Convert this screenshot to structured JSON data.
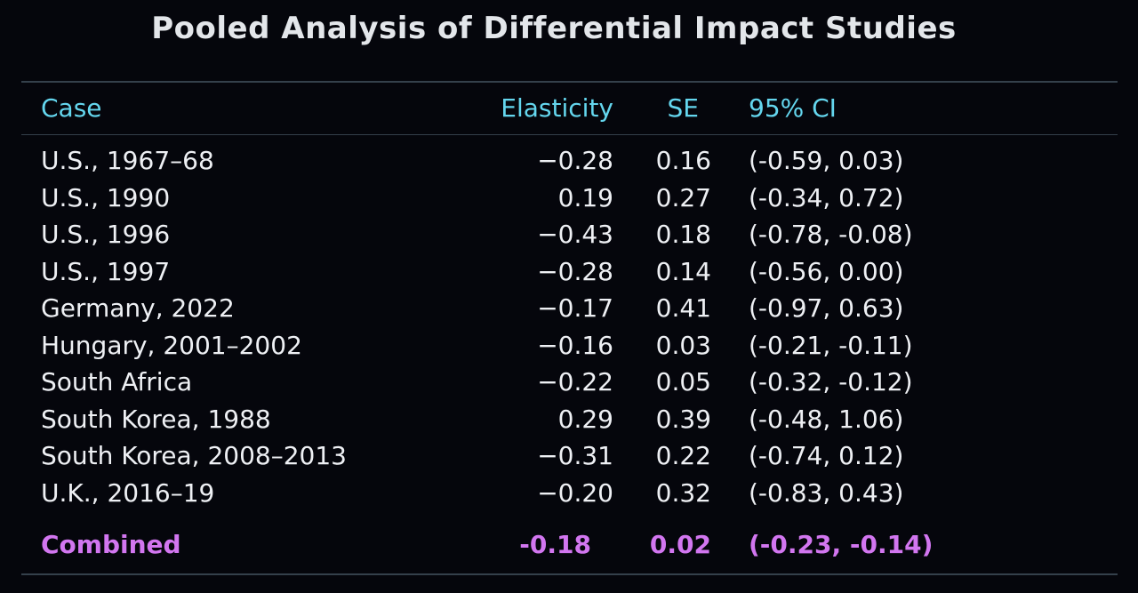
{
  "title": "Pooled Analysis of Differential Impact Studies",
  "columns": {
    "case": "Case",
    "elasticity": "Elasticity",
    "se": "SE",
    "ci": "95% CI"
  },
  "rows": [
    {
      "case": "U.S., 1967–68",
      "elasticity": "−0.28",
      "se": "0.16",
      "ci": "(-0.59, 0.03)"
    },
    {
      "case": "U.S., 1990",
      "elasticity": "0.19",
      "se": "0.27",
      "ci": "(-0.34, 0.72)"
    },
    {
      "case": "U.S., 1996",
      "elasticity": "−0.43",
      "se": "0.18",
      "ci": "(-0.78, -0.08)"
    },
    {
      "case": "U.S., 1997",
      "elasticity": "−0.28",
      "se": "0.14",
      "ci": "(-0.56, 0.00)"
    },
    {
      "case": "Germany, 2022",
      "elasticity": "−0.17",
      "se": "0.41",
      "ci": "(-0.97, 0.63)"
    },
    {
      "case": "Hungary, 2001–2002",
      "elasticity": "−0.16",
      "se": "0.03",
      "ci": "(-0.21, -0.11)"
    },
    {
      "case": "South Africa",
      "elasticity": "−0.22",
      "se": "0.05",
      "ci": "(-0.32, -0.12)"
    },
    {
      "case": "South Korea, 1988",
      "elasticity": "0.29",
      "se": "0.39",
      "ci": "(-0.48, 1.06)"
    },
    {
      "case": "South Korea, 2008–2013",
      "elasticity": "−0.31",
      "se": "0.22",
      "ci": "(-0.74, 0.12)"
    },
    {
      "case": "U.K., 2016–19",
      "elasticity": "−0.20",
      "se": "0.32",
      "ci": "(-0.83, 0.43)"
    }
  ],
  "combined": {
    "case": "Combined",
    "elasticity": "-0.18",
    "se": "0.02",
    "ci": "(-0.23, -0.14)"
  },
  "colors": {
    "background": "#05060c",
    "header": "#64d6ee",
    "combined": "#d276f0",
    "rule": "#34404b"
  }
}
